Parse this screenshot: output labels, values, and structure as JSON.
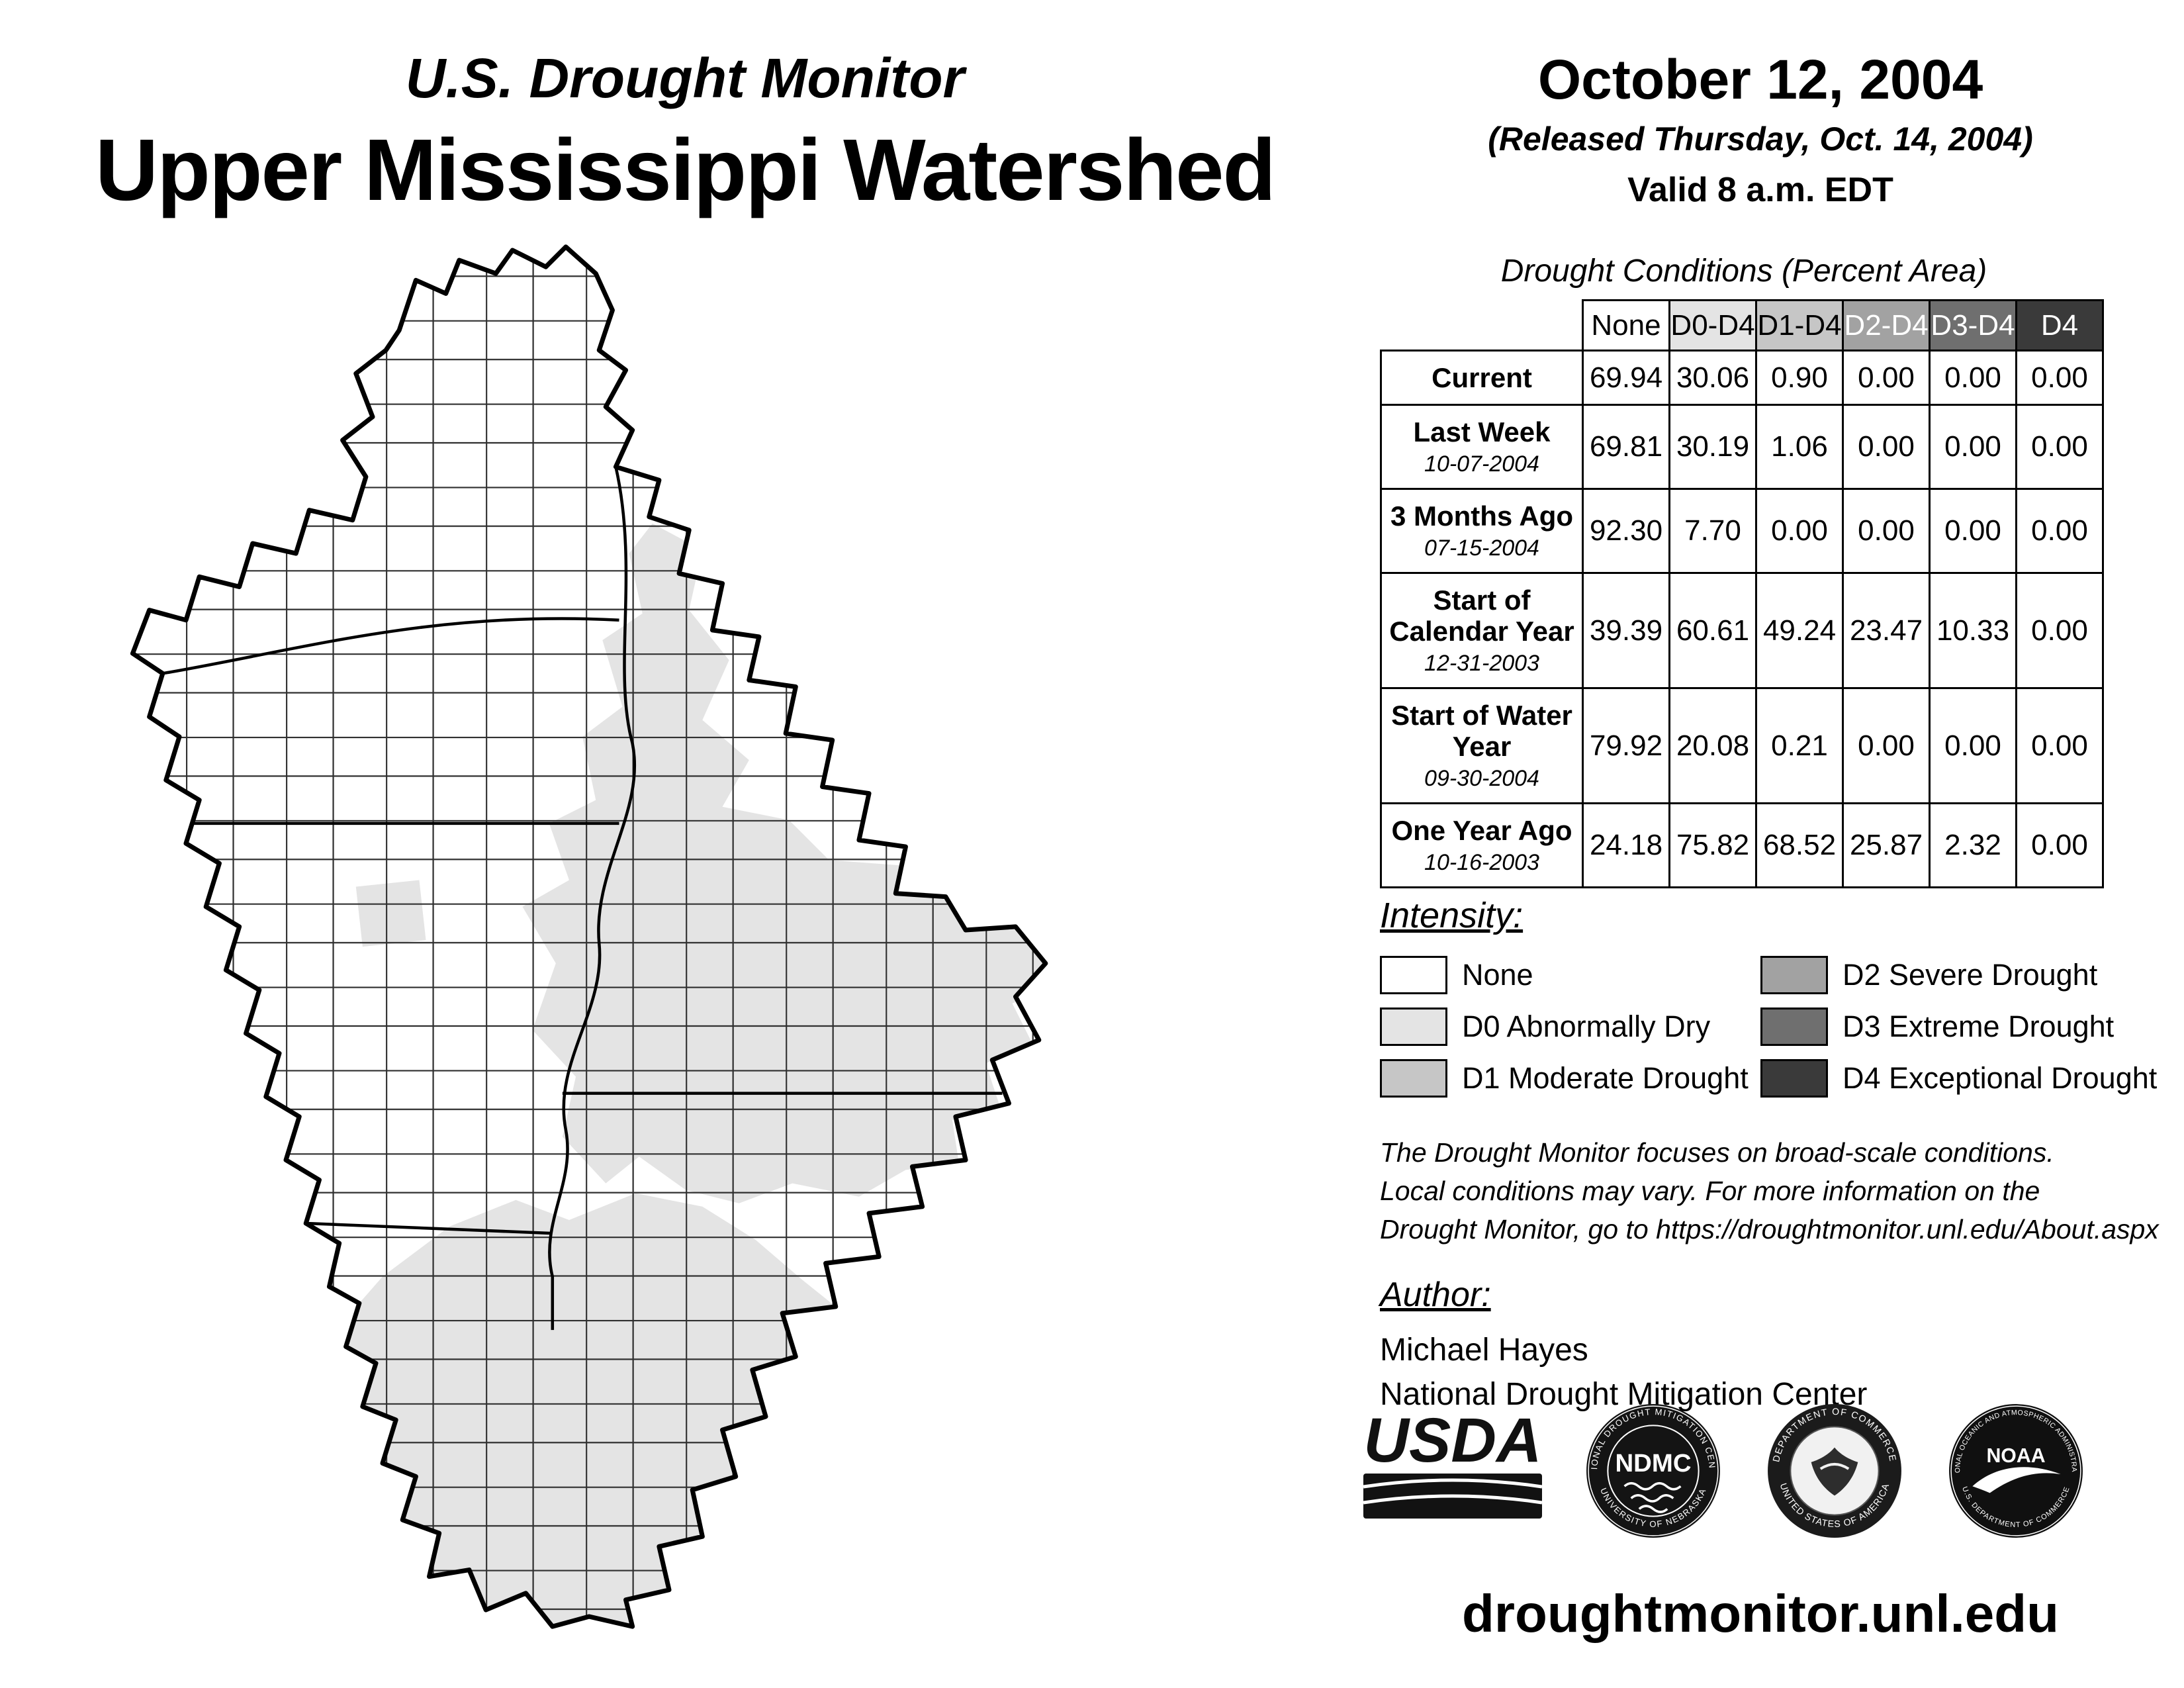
{
  "header": {
    "brand": "U.S. Drought Monitor",
    "region": "Upper Mississippi Watershed",
    "date": "October 12, 2004",
    "released": "(Released Thursday, Oct. 14, 2004)",
    "valid": "Valid 8 a.m. EDT"
  },
  "table": {
    "title": "Drought Conditions (Percent Area)",
    "columns": [
      {
        "label": "None",
        "bg": "#ffffff",
        "fg": "#000000"
      },
      {
        "label": "D0-D4",
        "bg": "#e4e4e4",
        "fg": "#000000"
      },
      {
        "label": "D1-D4",
        "bg": "#c6c6c6",
        "fg": "#000000"
      },
      {
        "label": "D2-D4",
        "bg": "#a2a2a2",
        "fg": "#ffffff"
      },
      {
        "label": "D3-D4",
        "bg": "#6f6f6f",
        "fg": "#ffffff"
      },
      {
        "label": "D4",
        "bg": "#3a3a3a",
        "fg": "#ffffff"
      }
    ],
    "rows": [
      {
        "label": "Current",
        "date": "",
        "values": [
          "69.94",
          "30.06",
          "0.90",
          "0.00",
          "0.00",
          "0.00"
        ]
      },
      {
        "label": "Last Week",
        "date": "10-07-2004",
        "values": [
          "69.81",
          "30.19",
          "1.06",
          "0.00",
          "0.00",
          "0.00"
        ]
      },
      {
        "label": "3 Months Ago",
        "date": "07-15-2004",
        "values": [
          "92.30",
          "7.70",
          "0.00",
          "0.00",
          "0.00",
          "0.00"
        ]
      },
      {
        "label": "Start of Calendar Year",
        "date": "12-31-2003",
        "values": [
          "39.39",
          "60.61",
          "49.24",
          "23.47",
          "10.33",
          "0.00"
        ]
      },
      {
        "label": "Start of Water Year",
        "date": "09-30-2004",
        "values": [
          "79.92",
          "20.08",
          "0.21",
          "0.00",
          "0.00",
          "0.00"
        ]
      },
      {
        "label": "One Year Ago",
        "date": "10-16-2003",
        "values": [
          "24.18",
          "75.82",
          "68.52",
          "25.87",
          "2.32",
          "0.00"
        ]
      }
    ]
  },
  "legend": {
    "title": "Intensity:",
    "items": [
      {
        "label": "None",
        "color": "#ffffff"
      },
      {
        "label": "D0 Abnormally Dry",
        "color": "#e4e4e4"
      },
      {
        "label": "D1 Moderate Drought",
        "color": "#c6c6c6"
      },
      {
        "label": "D2 Severe Drought",
        "color": "#a2a2a2"
      },
      {
        "label": "D3 Extreme Drought",
        "color": "#6f6f6f"
      },
      {
        "label": "D4 Exceptional Drought",
        "color": "#3a3a3a"
      }
    ]
  },
  "map": {
    "base_fill": "#ffffff",
    "d0_fill": "#e4e4e4",
    "boundary_color": "#000000"
  },
  "disclaimer": {
    "lines": [
      "The Drought Monitor focuses on broad-scale conditions.",
      "Local conditions may vary. For more information on the",
      "Drought Monitor, go to https://droughtmonitor.unl.edu/About.aspx"
    ]
  },
  "author": {
    "heading": "Author:",
    "name": "Michael Hayes",
    "org": "National Drought Mitigation Center"
  },
  "logos": {
    "usda": {
      "label": "USDA"
    },
    "ndmc": {
      "top": "NATIONAL DROUGHT MITIGATION CENTER",
      "bottom": "UNIVERSITY OF NEBRASKA",
      "center": "NDMC"
    },
    "commerce": {
      "top": "DEPARTMENT OF COMMERCE",
      "bottom": "UNITED STATES OF AMERICA"
    },
    "noaa": {
      "top": "NATIONAL OCEANIC AND ATMOSPHERIC ADMINISTRATION",
      "bottom": "U.S. DEPARTMENT OF COMMERCE",
      "center": "NOAA"
    }
  },
  "footer": {
    "url": "droughtmonitor.unl.edu"
  }
}
